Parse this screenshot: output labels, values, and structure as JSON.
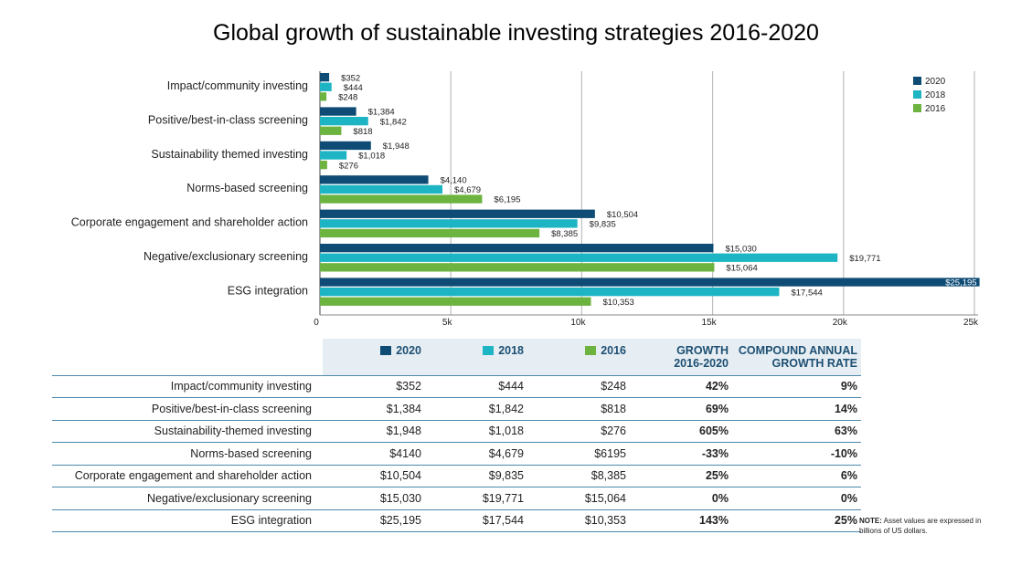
{
  "chart_data": {
    "type": "bar",
    "orientation": "horizontal",
    "title": "Global growth of sustainable investing strategies 2016-2020",
    "categories": [
      "Impact/community investing",
      "Positive/best-in-class screening",
      "Sustainability themed investing",
      "Norms-based screening",
      "Corporate engagement and shareholder action",
      "Negative/exclusionary screening",
      "ESG integration"
    ],
    "series": [
      {
        "name": "2020",
        "color": "#0f4c75",
        "values": [
          352,
          1384,
          1948,
          4140,
          10504,
          15030,
          25195
        ],
        "labels": [
          "$352",
          "$1,384",
          "$1,948",
          "$4,140",
          "$10,504",
          "$15,030",
          "$25,195"
        ]
      },
      {
        "name": "2018",
        "color": "#1db5c4",
        "values": [
          444,
          1842,
          1018,
          4679,
          9835,
          19771,
          17544
        ],
        "labels": [
          "$444",
          "$1,842",
          "$1,018",
          "$4,679",
          "$9,835",
          "$19,771",
          "$17,544"
        ]
      },
      {
        "name": "2016",
        "color": "#6db33f",
        "values": [
          248,
          818,
          276,
          6195,
          8385,
          15064,
          10353
        ],
        "labels": [
          "$248",
          "$818",
          "$276",
          "$6,195",
          "$8,385",
          "$15,064",
          "$10,353"
        ]
      }
    ],
    "xlim": [
      0,
      25000
    ],
    "xticks": [
      0,
      5000,
      10000,
      15000,
      20000,
      25000
    ],
    "xtick_labels": [
      "0",
      "5k",
      "10k",
      "15k",
      "20k",
      "25k"
    ],
    "grid": true,
    "legend_position": "top-right"
  },
  "table": {
    "header": {
      "y2020": "2020",
      "y2018": "2018",
      "y2016": "2016",
      "growth_line1": "GROWTH",
      "growth_line2": "2016-2020",
      "cagr_line1": "COMPOUND ANNUAL",
      "cagr_line2": "GROWTH RATE"
    },
    "rows": [
      {
        "label": "Impact/community investing",
        "v2020": "$352",
        "v2018": "$444",
        "v2016": "$248",
        "growth": "42%",
        "cagr": "9%"
      },
      {
        "label": "Positive/best-in-class screening",
        "v2020": "$1,384",
        "v2018": "$1,842",
        "v2016": "$818",
        "growth": "69%",
        "cagr": "14%"
      },
      {
        "label": "Sustainability-themed investing",
        "v2020": "$1,948",
        "v2018": "$1,018",
        "v2016": "$276",
        "growth": "605%",
        "cagr": "63%"
      },
      {
        "label": "Norms-based screening",
        "v2020": "$4140",
        "v2018": "$4,679",
        "v2016": "$6195",
        "growth": "-33%",
        "cagr": "-10%"
      },
      {
        "label": "Corporate engagement and shareholder action",
        "v2020": "$10,504",
        "v2018": "$9,835",
        "v2016": "$8,385",
        "growth": "25%",
        "cagr": "6%"
      },
      {
        "label": "Negative/exclusionary screening",
        "v2020": "$15,030",
        "v2018": "$19,771",
        "v2016": "$15,064",
        "growth": "0%",
        "cagr": "0%"
      },
      {
        "label": "ESG integration",
        "v2020": "$25,195",
        "v2018": "$17,544",
        "v2016": "$10,353",
        "growth": "143%",
        "cagr": "25%"
      }
    ]
  },
  "note": {
    "prefix": "NOTE:",
    "text": " Asset values are expressed in billions of US dollars."
  }
}
